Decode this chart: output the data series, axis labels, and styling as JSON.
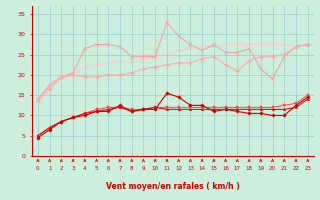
{
  "x": [
    0,
    1,
    2,
    3,
    4,
    5,
    6,
    7,
    8,
    9,
    10,
    11,
    12,
    13,
    14,
    15,
    16,
    17,
    18,
    19,
    20,
    21,
    22,
    23
  ],
  "series": [
    {
      "y": [
        4.5,
        6.5,
        8.5,
        9.5,
        10.0,
        11.0,
        11.0,
        12.5,
        11.0,
        11.5,
        11.5,
        15.5,
        14.5,
        12.5,
        12.5,
        11.0,
        11.5,
        11.0,
        10.5,
        10.5,
        10.0,
        10.0,
        12.5,
        14.5
      ],
      "color": "#cc0000",
      "marker": "D",
      "markersize": 1.8,
      "lw": 0.8,
      "zorder": 5
    },
    {
      "y": [
        5.0,
        7.0,
        8.5,
        9.5,
        10.5,
        11.0,
        11.5,
        12.0,
        11.0,
        11.5,
        12.0,
        11.5,
        11.5,
        11.5,
        11.5,
        11.5,
        11.5,
        11.5,
        11.5,
        11.5,
        11.5,
        11.5,
        12.0,
        14.0
      ],
      "color": "#dd1111",
      "marker": "^",
      "markersize": 1.8,
      "lw": 0.8,
      "zorder": 4
    },
    {
      "y": [
        5.0,
        7.0,
        8.5,
        9.5,
        10.5,
        11.5,
        12.0,
        12.0,
        11.5,
        11.5,
        12.0,
        12.0,
        12.0,
        12.0,
        12.0,
        12.0,
        12.0,
        12.0,
        12.0,
        12.0,
        12.0,
        12.5,
        13.0,
        15.0
      ],
      "color": "#ff4444",
      "marker": "s",
      "markersize": 1.5,
      "lw": 0.7,
      "zorder": 3
    },
    {
      "y": [
        13.5,
        16.5,
        19.5,
        20.0,
        19.5,
        19.5,
        20.0,
        20.0,
        20.5,
        21.5,
        22.0,
        22.5,
        23.0,
        23.0,
        24.0,
        24.5,
        22.5,
        21.0,
        23.5,
        24.5,
        24.5,
        25.0,
        27.0,
        27.5
      ],
      "color": "#ffaaaa",
      "marker": "D",
      "markersize": 1.8,
      "lw": 0.8,
      "zorder": 2
    },
    {
      "y": [
        14.0,
        17.5,
        19.5,
        20.5,
        26.5,
        27.5,
        27.5,
        27.0,
        24.5,
        24.5,
        24.5,
        33.0,
        29.5,
        27.5,
        26.0,
        27.5,
        25.5,
        25.5,
        26.5,
        21.5,
        19.0,
        24.5,
        27.0,
        27.5
      ],
      "color": "#ff9999",
      "marker": "x",
      "markersize": 2.5,
      "lw": 0.7,
      "zorder": 1
    },
    {
      "y": [
        14.0,
        17.0,
        19.0,
        20.0,
        22.0,
        22.5,
        23.0,
        23.5,
        23.0,
        23.5,
        24.5,
        25.0,
        26.0,
        26.5,
        27.0,
        27.0,
        27.5,
        27.5,
        27.5,
        27.5,
        27.5,
        27.5,
        27.0,
        27.5
      ],
      "color": "#ffcccc",
      "marker": null,
      "markersize": 0,
      "lw": 1.0,
      "zorder": 0
    }
  ],
  "xlabel": "Vent moyen/en rafales ( km/h )",
  "xlabel_color": "#cc0000",
  "xlabel_fontsize": 5.5,
  "bg_color": "#cceedd",
  "grid_color": "#99cccc",
  "tick_color": "#cc0000",
  "ylim": [
    0,
    37
  ],
  "xlim": [
    -0.5,
    23.5
  ],
  "yticks": [
    0,
    5,
    10,
    15,
    20,
    25,
    30,
    35
  ],
  "xticks": [
    0,
    1,
    2,
    3,
    4,
    5,
    6,
    7,
    8,
    9,
    10,
    11,
    12,
    13,
    14,
    15,
    16,
    17,
    18,
    19,
    20,
    21,
    22,
    23
  ]
}
